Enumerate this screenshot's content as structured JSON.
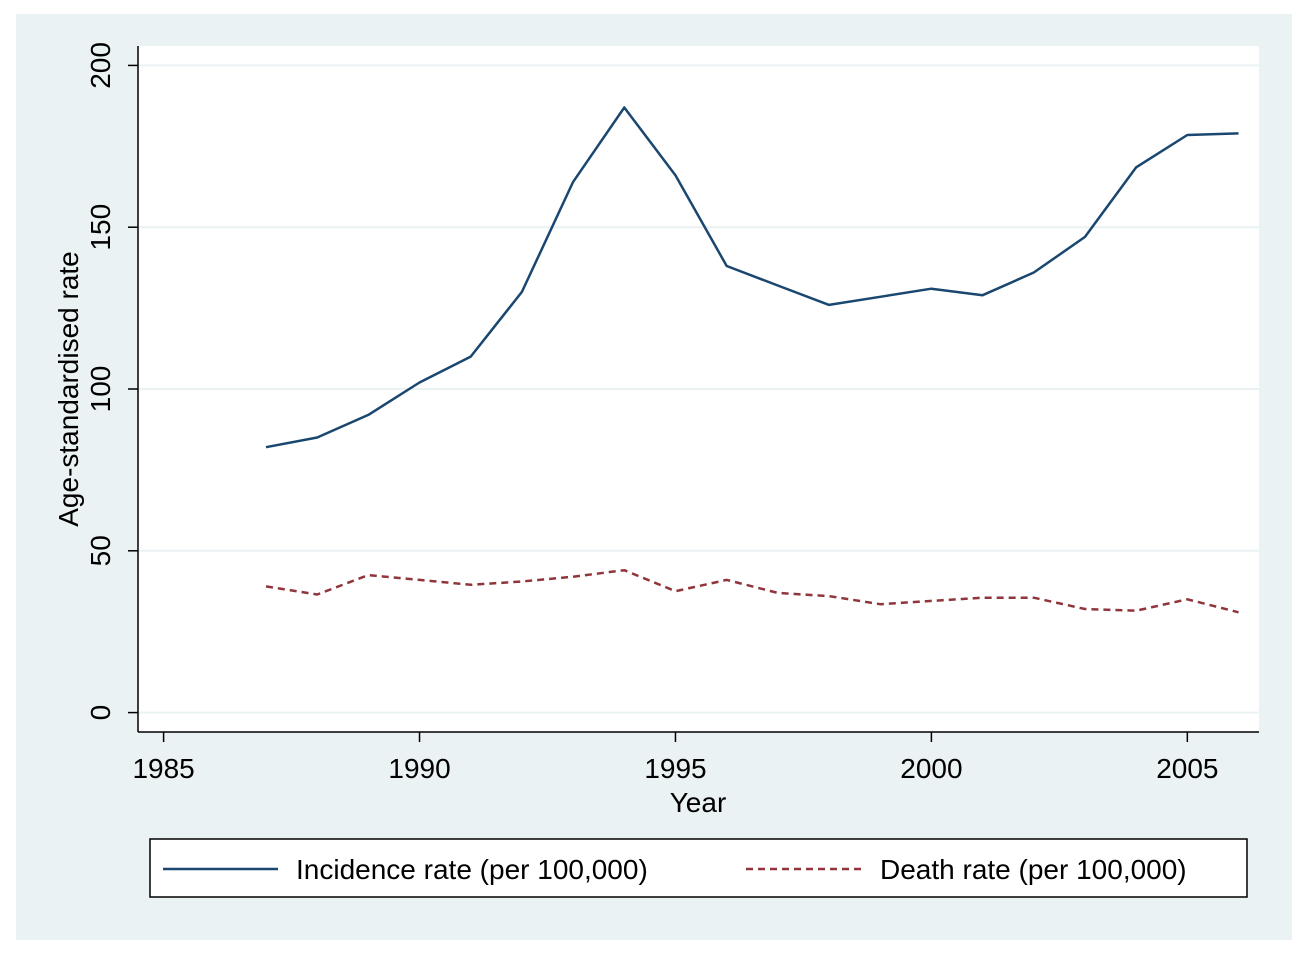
{
  "chart_data": {
    "type": "line",
    "title": "",
    "xlabel": "Year",
    "ylabel": "Age-standardised rate",
    "xlim": [
      1984.5,
      2006.4
    ],
    "ylim": [
      -6,
      206
    ],
    "x_ticks": [
      1985,
      1990,
      1995,
      2000,
      2005
    ],
    "y_ticks": [
      0,
      50,
      100,
      150,
      200
    ],
    "grid": "horizontal",
    "legend_position": "bottom",
    "x": [
      1987,
      1988,
      1989,
      1990,
      1991,
      1992,
      1993,
      1994,
      1995,
      1996,
      1997,
      1998,
      1999,
      2000,
      2001,
      2002,
      2003,
      2004,
      2005,
      2006
    ],
    "series": [
      {
        "name": "Incidence rate (per 100,000)",
        "color": "#1a476f",
        "style": "solid",
        "values": [
          82,
          85,
          92,
          102,
          110,
          130,
          164,
          187,
          166,
          138,
          132,
          126,
          128.5,
          131,
          129,
          136,
          147,
          168.5,
          178.5,
          179
        ]
      },
      {
        "name": "Death rate (per 100,000)",
        "color": "#90353b",
        "style": "dashed",
        "values": [
          39,
          36.5,
          42.5,
          41,
          39.5,
          40.5,
          42,
          44,
          37.5,
          41,
          37,
          36,
          33.5,
          34.5,
          35.5,
          35.5,
          32,
          31.5,
          35,
          31
        ]
      }
    ]
  },
  "colors": {
    "outer_background": "#eaf2f3",
    "plot_background": "#ffffff",
    "grid": "#eaf2f3"
  }
}
